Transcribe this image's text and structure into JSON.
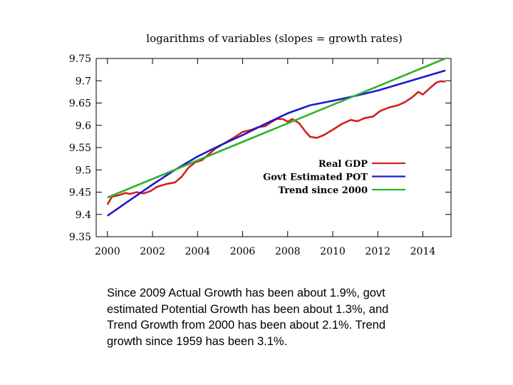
{
  "chart_data": {
    "type": "line",
    "title": "logarithms of variables (slopes = growth rates)",
    "xlabel": "",
    "ylabel": "",
    "xlim": [
      1999.5,
      2015.25
    ],
    "ylim": [
      9.35,
      9.75
    ],
    "xticks": [
      2000,
      2002,
      2004,
      2006,
      2008,
      2010,
      2012,
      2014
    ],
    "yticks": [
      9.35,
      9.4,
      9.45,
      9.5,
      9.55,
      9.6,
      9.65,
      9.7,
      9.75
    ],
    "ytick_labels": [
      "9.35",
      "9.4",
      "9.45",
      "9.5",
      "9.55",
      "9.6",
      "9.65",
      "9.7",
      "9.75"
    ],
    "grid": false,
    "legend_placement": "center-right",
    "series": [
      {
        "name": "Real GDP",
        "color": "#d42020",
        "x": [
          2000,
          2000.2,
          2000.5,
          2000.8,
          2001,
          2001.3,
          2001.6,
          2001.9,
          2002.2,
          2002.6,
          2003,
          2003.3,
          2003.6,
          2003.9,
          2004.2,
          2004.5,
          2004.8,
          2005.2,
          2005.6,
          2006,
          2006.4,
          2006.7,
          2007,
          2007.3,
          2007.5,
          2007.8,
          2008,
          2008.2,
          2008.5,
          2008.8,
          2009,
          2009.3,
          2009.6,
          2010,
          2010.4,
          2010.8,
          2011.1,
          2011.4,
          2011.8,
          2012.1,
          2012.5,
          2012.9,
          2013.2,
          2013.5,
          2013.8,
          2014,
          2014.3,
          2014.6,
          2014.8,
          2015
        ],
        "y": [
          9.422,
          9.44,
          9.443,
          9.448,
          9.446,
          9.45,
          9.447,
          9.452,
          9.462,
          9.468,
          9.472,
          9.485,
          9.505,
          9.517,
          9.522,
          9.535,
          9.548,
          9.56,
          9.572,
          9.585,
          9.59,
          9.596,
          9.598,
          9.608,
          9.614,
          9.614,
          9.608,
          9.614,
          9.605,
          9.585,
          9.574,
          9.572,
          9.578,
          9.59,
          9.603,
          9.612,
          9.609,
          9.616,
          9.62,
          9.632,
          9.64,
          9.645,
          9.652,
          9.662,
          9.675,
          9.669,
          9.683,
          9.696,
          9.699,
          9.698
        ]
      },
      {
        "name": "Govt Estimated POT",
        "color": "#1a1ad0",
        "x": [
          2000,
          2001,
          2002,
          2003,
          2004,
          2005,
          2006,
          2007,
          2008,
          2009,
          2010,
          2011,
          2012,
          2013,
          2014,
          2015
        ],
        "y": [
          9.397,
          9.432,
          9.467,
          9.5,
          9.53,
          9.555,
          9.578,
          9.603,
          9.627,
          9.645,
          9.655,
          9.666,
          9.678,
          9.693,
          9.708,
          9.723
        ]
      },
      {
        "name": "Trend since 2000",
        "color": "#2fb02f",
        "x": [
          2000,
          2015
        ],
        "y": [
          9.438,
          9.75
        ]
      }
    ]
  },
  "caption": {
    "lines": [
      "Since 2009 Actual Growth has been about 1.9%, govt",
      "estimated Potential Growth has been about 1.3%, and",
      "Trend Growth from 2000 has been about 2.1%. Trend",
      "growth since 1959 has been 3.1%."
    ]
  }
}
